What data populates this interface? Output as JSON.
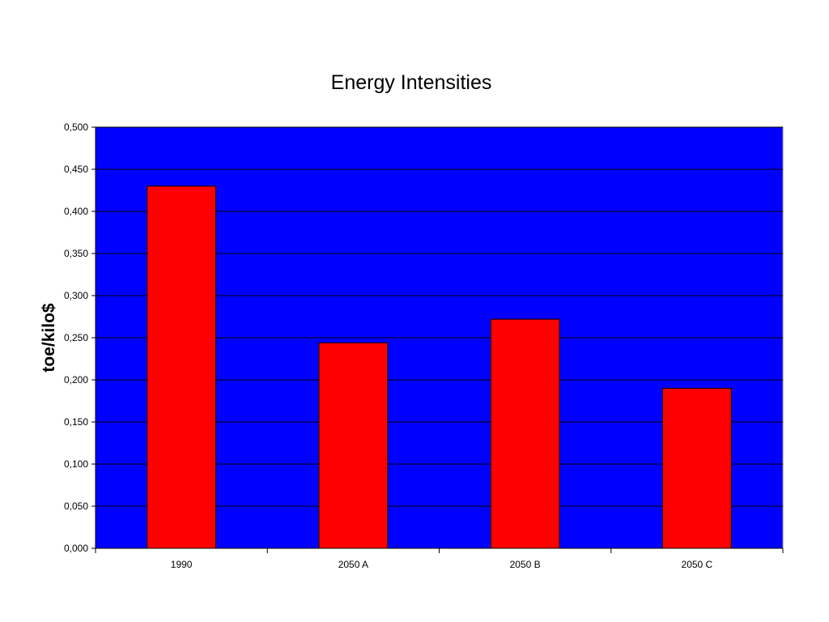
{
  "chart_data": {
    "type": "bar",
    "title": "Energy Intensities",
    "xlabel": "",
    "ylabel": "toe/kilo$",
    "categories": [
      "1990",
      "2050 A",
      "2050 B",
      "2050 C"
    ],
    "values": [
      0.43,
      0.244,
      0.272,
      0.19
    ],
    "ylim": [
      0,
      0.5
    ],
    "yticks": [
      "0,000",
      "0,050",
      "0,100",
      "0,150",
      "0,200",
      "0,250",
      "0,300",
      "0,350",
      "0,400",
      "0,450",
      "0,500"
    ],
    "grid": true,
    "legend": "none",
    "colors": {
      "plot_background": "#0000ff",
      "bar_fill": "#ff0000",
      "gridline": "#000000"
    }
  }
}
